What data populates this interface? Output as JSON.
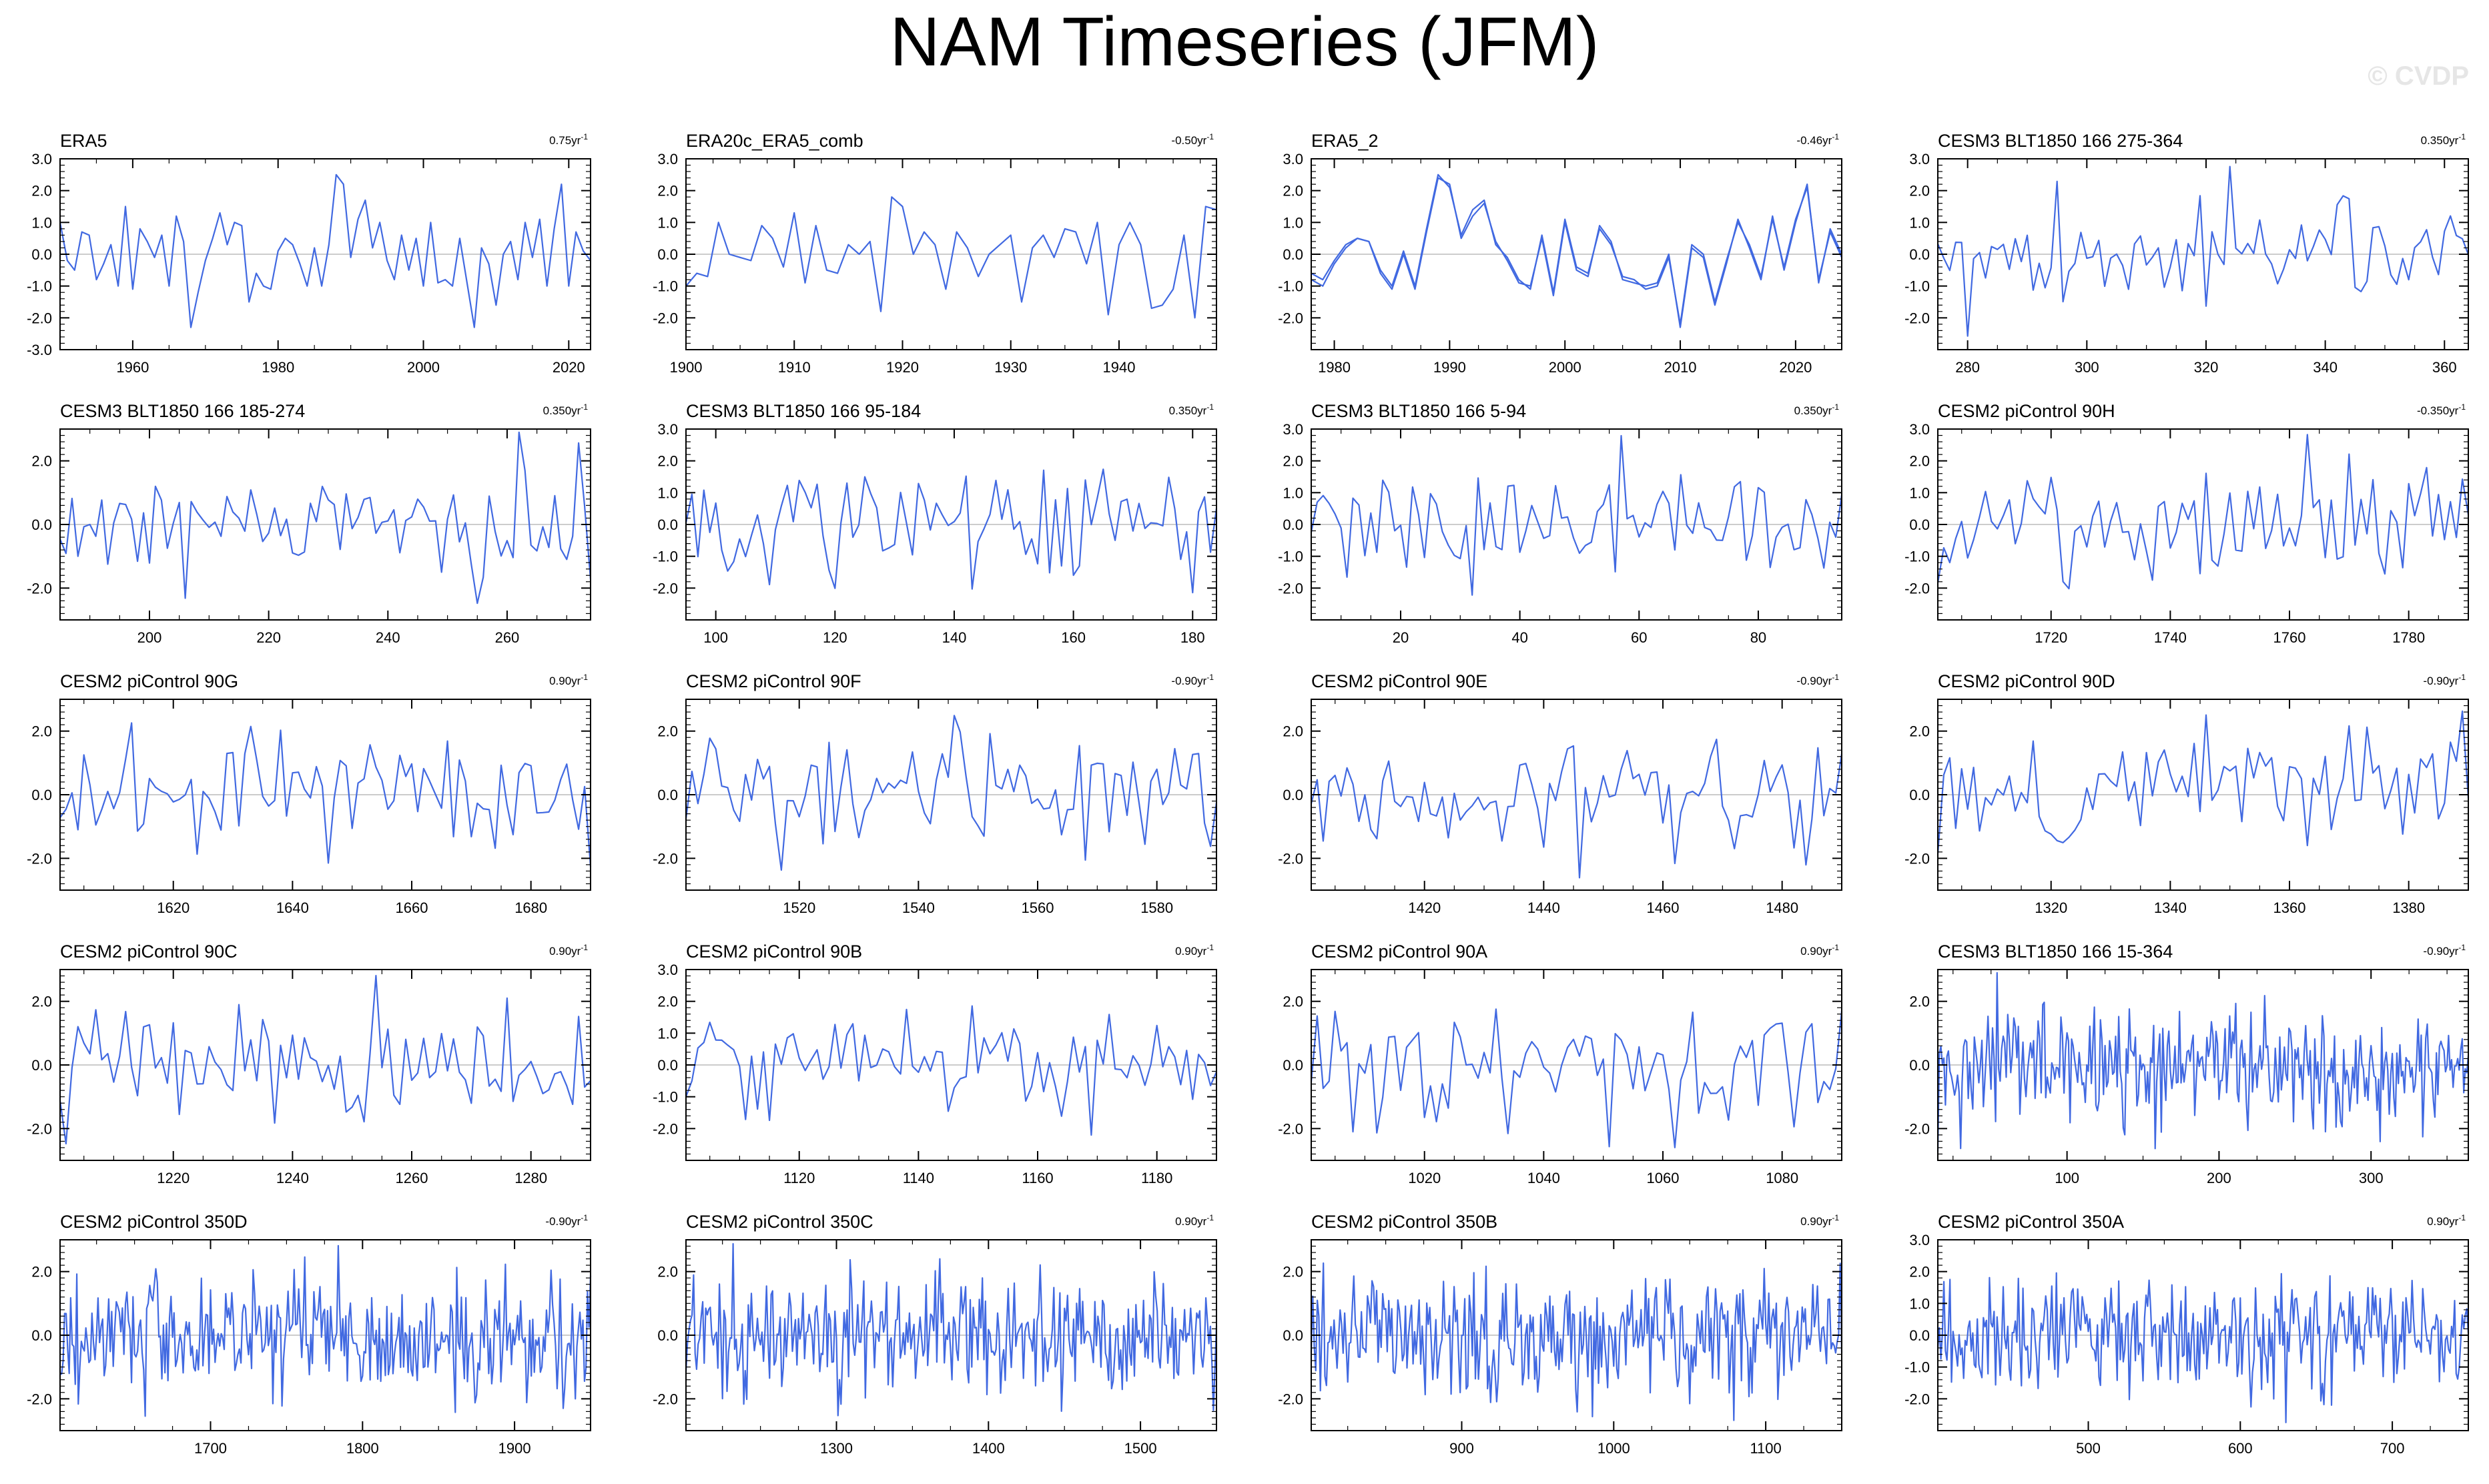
{
  "title": "NAM Timeseries (JFM)",
  "watermark": "© CVDP",
  "colors": {
    "series": "#4169e1",
    "zero_line": "#bbbbbb",
    "axis": "#000000"
  },
  "chart_data": [
    {
      "type": "line",
      "title": "ERA5",
      "trend": "0.75yr",
      "xlim": [
        1950,
        2023
      ],
      "ylim": [
        -3,
        3
      ],
      "xticks": [
        1960,
        1980,
        2000,
        2020
      ],
      "yticks": [
        "3.0",
        "2.0",
        "1.0",
        "0.0",
        "-1.0",
        "-2.0",
        "-3.0"
      ],
      "series": [
        {
          "x": [
            1950,
            1951,
            1952,
            1953,
            1954,
            1955,
            1956,
            1957,
            1958,
            1959,
            1960,
            1961,
            1962,
            1963,
            1964,
            1965,
            1966,
            1967,
            1968,
            1969,
            1970,
            1971,
            1972,
            1973,
            1974,
            1975,
            1976,
            1977,
            1978,
            1979,
            1980,
            1981,
            1982,
            1983,
            1984,
            1985,
            1986,
            1987,
            1988,
            1989,
            1990,
            1991,
            1992,
            1993,
            1994,
            1995,
            1996,
            1997,
            1998,
            1999,
            2000,
            2001,
            2002,
            2003,
            2004,
            2005,
            2006,
            2007,
            2008,
            2009,
            2010,
            2011,
            2012,
            2013,
            2014,
            2015,
            2016,
            2017,
            2018,
            2019,
            2020,
            2021,
            2022,
            2023
          ],
          "y": [
            1.0,
            -0.2,
            -0.5,
            0.7,
            0.6,
            -0.8,
            -0.3,
            0.3,
            -1.0,
            1.5,
            -1.1,
            0.8,
            0.4,
            -0.1,
            0.6,
            -1.0,
            1.2,
            0.4,
            -2.3,
            -1.2,
            -0.2,
            0.5,
            1.3,
            0.3,
            1.0,
            0.9,
            -1.5,
            -0.6,
            -1.0,
            -1.1,
            0.1,
            0.5,
            0.3,
            -0.3,
            -1.0,
            0.2,
            -1.0,
            0.3,
            2.5,
            2.2,
            -0.1,
            1.1,
            1.7,
            0.2,
            1.0,
            -0.2,
            -0.8,
            0.6,
            -0.5,
            0.5,
            -1.0,
            1.0,
            -0.9,
            -0.8,
            -1.0,
            0.5,
            -0.9,
            -2.3,
            0.2,
            -0.3,
            -1.6,
            0.0,
            0.4,
            -0.8,
            1.0,
            -0.1,
            1.1,
            -1.0,
            0.8,
            2.2,
            -1.0,
            0.7,
            0.1,
            -0.2
          ]
        }
      ]
    },
    {
      "type": "line",
      "title": "ERA20c_ERA5_comb",
      "trend": "-0.50yr",
      "xlim": [
        1900,
        1949
      ],
      "ylim": [
        -3,
        3
      ],
      "xticks": [
        1900,
        1910,
        1920,
        1930,
        1940
      ],
      "yticks": [
        "3.0",
        "2.0",
        "1.0",
        "0.0",
        "-1.0",
        "-2.0"
      ],
      "series": [
        {
          "x": [
            1900,
            1901,
            1902,
            1903,
            1904,
            1905,
            1906,
            1907,
            1908,
            1909,
            1910,
            1911,
            1912,
            1913,
            1914,
            1915,
            1916,
            1917,
            1918,
            1919,
            1920,
            1921,
            1922,
            1923,
            1924,
            1925,
            1926,
            1927,
            1928,
            1929,
            1930,
            1931,
            1932,
            1933,
            1934,
            1935,
            1936,
            1937,
            1938,
            1939,
            1940,
            1941,
            1942,
            1943,
            1944,
            1945,
            1946,
            1947,
            1948,
            1949
          ],
          "y": [
            -1.0,
            -0.6,
            -0.7,
            1.0,
            0.0,
            -0.1,
            -0.2,
            0.9,
            0.5,
            -0.4,
            1.3,
            -0.9,
            0.9,
            -0.5,
            -0.6,
            0.3,
            0.0,
            0.4,
            -1.8,
            1.8,
            1.5,
            0.0,
            0.7,
            0.3,
            -1.1,
            0.7,
            0.2,
            -0.7,
            0.0,
            0.3,
            0.6,
            -1.5,
            0.2,
            0.6,
            -0.1,
            0.8,
            0.7,
            -0.3,
            1.0,
            -1.9,
            0.3,
            1.0,
            0.3,
            -1.7,
            -1.6,
            -1.1,
            0.6,
            -2.0,
            1.5,
            1.4
          ]
        }
      ]
    },
    {
      "type": "line",
      "title": "ERA5_2",
      "trend": "-0.46yr",
      "xlim": [
        1978,
        2024
      ],
      "ylim": [
        -3,
        3
      ],
      "xticks": [
        1980,
        1990,
        2000,
        2010,
        2020
      ],
      "yticks": [
        "3.0",
        "2.0",
        "1.0",
        "0.0",
        "-1.0",
        "-2.0"
      ],
      "series": [
        {
          "x": [
            1978,
            1979,
            1980,
            1981,
            1982,
            1983,
            1984,
            1985,
            1986,
            1987,
            1988,
            1989,
            1990,
            1991,
            1992,
            1993,
            1994,
            1995,
            1996,
            1997,
            1998,
            1999,
            2000,
            2001,
            2002,
            2003,
            2004,
            2005,
            2006,
            2007,
            2008,
            2009,
            2010,
            2011,
            2012,
            2013,
            2014,
            2015,
            2016,
            2017,
            2018,
            2019,
            2020,
            2021,
            2022,
            2023,
            2024
          ],
          "y": [
            -0.8,
            -1.0,
            -0.3,
            0.2,
            0.5,
            0.4,
            -0.6,
            -1.1,
            0.0,
            -1.1,
            0.7,
            2.4,
            2.2,
            0.5,
            1.2,
            1.6,
            0.4,
            -0.2,
            -0.9,
            -1.0,
            0.5,
            -1.3,
            1.0,
            -0.5,
            -0.7,
            0.9,
            0.4,
            -0.8,
            -0.9,
            -1.0,
            -0.9,
            0.0,
            -2.3,
            0.2,
            -0.1,
            -1.6,
            -0.3,
            1.1,
            0.2,
            -0.8,
            1.2,
            -0.5,
            1.0,
            2.2,
            -0.9,
            0.8,
            0.0
          ]
        },
        {
          "x": [
            1978,
            1979,
            1980,
            1981,
            1982,
            1983,
            1984,
            1985,
            1986,
            1987,
            1988,
            1989,
            1990,
            1991,
            1992,
            1993,
            1994,
            1995,
            1996,
            1997,
            1998,
            1999,
            2000,
            2001,
            2002,
            2003,
            2004,
            2005,
            2006,
            2007,
            2008,
            2009,
            2010,
            2011,
            2012,
            2013,
            2014,
            2015,
            2016,
            2017,
            2018,
            2019,
            2020,
            2021,
            2022,
            2023,
            2024
          ],
          "y": [
            -0.6,
            -0.8,
            -0.2,
            0.3,
            0.5,
            0.4,
            -0.5,
            -1.0,
            0.1,
            -1.0,
            0.8,
            2.5,
            2.1,
            0.6,
            1.4,
            1.7,
            0.3,
            -0.1,
            -0.8,
            -1.1,
            0.6,
            -1.2,
            1.1,
            -0.4,
            -0.6,
            0.8,
            0.3,
            -0.7,
            -0.8,
            -1.1,
            -1.0,
            -0.1,
            -2.2,
            0.3,
            0.0,
            -1.5,
            -0.2,
            1.0,
            0.3,
            -0.7,
            1.1,
            -0.4,
            1.1,
            2.1,
            -0.8,
            0.7,
            -0.1
          ]
        }
      ]
    },
    {
      "type": "line",
      "title": "CESM3 BLT1850 166 275-364",
      "trend": "0.350yr",
      "xlim": [
        275,
        364
      ],
      "ylim": [
        -3,
        3
      ],
      "xticks": [
        280,
        300,
        320,
        340,
        360
      ],
      "yticks": [
        "3.0",
        "2.0",
        "1.0",
        "0.0",
        "-1.0",
        "-2.0"
      ],
      "n": 90,
      "seed": 4
    },
    {
      "type": "line",
      "title": "CESM3 BLT1850 166 185-274",
      "trend": "0.350yr",
      "xlim": [
        185,
        274
      ],
      "ylim": [
        -3,
        3
      ],
      "xticks": [
        200,
        220,
        240,
        260
      ],
      "yticks": [
        "2.0",
        "0.0",
        "-2.0"
      ],
      "n": 90,
      "seed": 5
    },
    {
      "type": "line",
      "title": "CESM3 BLT1850 166 95-184",
      "trend": "0.350yr",
      "xlim": [
        95,
        184
      ],
      "ylim": [
        -3,
        3
      ],
      "xticks": [
        100,
        120,
        140,
        160,
        180
      ],
      "yticks": [
        "3.0",
        "2.0",
        "1.0",
        "0.0",
        "-1.0",
        "-2.0"
      ],
      "n": 90,
      "seed": 6
    },
    {
      "type": "line",
      "title": "CESM3 BLT1850 166 5-94",
      "trend": "0.350yr",
      "xlim": [
        5,
        94
      ],
      "ylim": [
        -3,
        3
      ],
      "xticks": [
        20,
        40,
        60,
        80
      ],
      "yticks": [
        "3.0",
        "2.0",
        "1.0",
        "0.0",
        "-1.0",
        "-2.0"
      ],
      "n": 90,
      "seed": 7
    },
    {
      "type": "line",
      "title": "CESM2 piControl 90H",
      "trend": "-0.350yr",
      "xlim": [
        1701,
        1790
      ],
      "ylim": [
        -3,
        3
      ],
      "xticks": [
        1720,
        1740,
        1760,
        1780
      ],
      "yticks": [
        "3.0",
        "2.0",
        "1.0",
        "0.0",
        "-1.0",
        "-2.0"
      ],
      "n": 90,
      "seed": 8
    },
    {
      "type": "line",
      "title": "CESM2 piControl 90G",
      "trend": "0.90yr",
      "xlim": [
        1601,
        1690
      ],
      "ylim": [
        -3,
        3
      ],
      "xticks": [
        1620,
        1640,
        1660,
        1680
      ],
      "yticks": [
        "2.0",
        "0.0",
        "-2.0"
      ],
      "n": 90,
      "seed": 9
    },
    {
      "type": "line",
      "title": "CESM2 piControl 90F",
      "trend": "-0.90yr",
      "xlim": [
        1501,
        1590
      ],
      "ylim": [
        -3,
        3
      ],
      "xticks": [
        1520,
        1540,
        1560,
        1580
      ],
      "yticks": [
        "2.0",
        "0.0",
        "-2.0"
      ],
      "n": 90,
      "seed": 10
    },
    {
      "type": "line",
      "title": "CESM2 piControl 90E",
      "trend": "-0.90yr",
      "xlim": [
        1401,
        1490
      ],
      "ylim": [
        -3,
        3
      ],
      "xticks": [
        1420,
        1440,
        1460,
        1480
      ],
      "yticks": [
        "2.0",
        "0.0",
        "-2.0"
      ],
      "n": 90,
      "seed": 11
    },
    {
      "type": "line",
      "title": "CESM2 piControl 90D",
      "trend": "-0.90yr",
      "xlim": [
        1301,
        1390
      ],
      "ylim": [
        -3,
        3
      ],
      "xticks": [
        1320,
        1340,
        1360,
        1380
      ],
      "yticks": [
        "2.0",
        "0.0",
        "-2.0"
      ],
      "n": 90,
      "seed": 12
    },
    {
      "type": "line",
      "title": "CESM2 piControl 90C",
      "trend": "0.90yr",
      "xlim": [
        1201,
        1290
      ],
      "ylim": [
        -3,
        3
      ],
      "xticks": [
        1220,
        1240,
        1260,
        1280
      ],
      "yticks": [
        "2.0",
        "0.0",
        "-2.0"
      ],
      "n": 90,
      "seed": 13
    },
    {
      "type": "line",
      "title": "CESM2 piControl 90B",
      "trend": "0.90yr",
      "xlim": [
        1101,
        1190
      ],
      "ylim": [
        -3,
        3
      ],
      "xticks": [
        1120,
        1140,
        1160,
        1180
      ],
      "yticks": [
        "3.0",
        "2.0",
        "1.0",
        "0.0",
        "-1.0",
        "-2.0"
      ],
      "n": 90,
      "seed": 14
    },
    {
      "type": "line",
      "title": "CESM2 piControl 90A",
      "trend": "0.90yr",
      "xlim": [
        1001,
        1090
      ],
      "ylim": [
        -3,
        3
      ],
      "xticks": [
        1020,
        1040,
        1060,
        1080
      ],
      "yticks": [
        "2.0",
        "0.0",
        "-2.0"
      ],
      "n": 90,
      "seed": 15
    },
    {
      "type": "line",
      "title": "CESM3 BLT1850 166 15-364",
      "trend": "-0.90yr",
      "xlim": [
        15,
        364
      ],
      "ylim": [
        -3,
        3
      ],
      "xticks": [
        100,
        200,
        300
      ],
      "yticks": [
        "2.0",
        "0.0",
        "-2.0"
      ],
      "n": 350,
      "seed": 16
    },
    {
      "type": "line",
      "title": "CESM2 piControl 350D",
      "trend": "-0.90yr",
      "xlim": [
        1601,
        1950
      ],
      "ylim": [
        -3,
        3
      ],
      "xticks": [
        1700,
        1800,
        1900
      ],
      "yticks": [
        "2.0",
        "0.0",
        "-2.0"
      ],
      "n": 350,
      "seed": 17
    },
    {
      "type": "line",
      "title": "CESM2 piControl 350C",
      "trend": "0.90yr",
      "xlim": [
        1201,
        1550
      ],
      "ylim": [
        -3,
        3
      ],
      "xticks": [
        1300,
        1400,
        1500
      ],
      "yticks": [
        "2.0",
        "0.0",
        "-2.0"
      ],
      "n": 350,
      "seed": 18
    },
    {
      "type": "line",
      "title": "CESM2 piControl 350B",
      "trend": "0.90yr",
      "xlim": [
        801,
        1150
      ],
      "ylim": [
        -3,
        3
      ],
      "xticks": [
        900,
        1000,
        1100
      ],
      "yticks": [
        "2.0",
        "0.0",
        "-2.0"
      ],
      "n": 350,
      "seed": 19
    },
    {
      "type": "line",
      "title": "CESM2 piControl 350A",
      "trend": "0.90yr",
      "xlim": [
        401,
        750
      ],
      "ylim": [
        -3,
        3
      ],
      "xticks": [
        500,
        600,
        700
      ],
      "yticks": [
        "3.0",
        "2.0",
        "1.0",
        "0.0",
        "-1.0",
        "-2.0"
      ],
      "n": 350,
      "seed": 20
    }
  ]
}
